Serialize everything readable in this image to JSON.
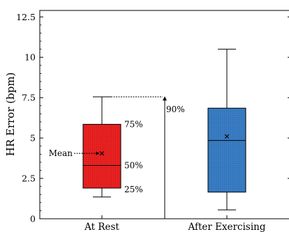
{
  "chart_data": {
    "type": "box",
    "ylabel": "HR Error (bpm)",
    "ylim": [
      0,
      12.9
    ],
    "yticks": [
      0,
      2.5,
      5,
      7.5,
      10,
      12.5
    ],
    "ytick_labels": [
      "0",
      "2.5",
      "5",
      "7.5",
      "10",
      "12.5"
    ],
    "categories": [
      "At Rest",
      "After Exercising"
    ],
    "boxes": [
      {
        "category": "At Rest",
        "whisker_low": 1.35,
        "q1": 1.9,
        "median": 3.3,
        "q3": 5.85,
        "whisker_high": 7.55,
        "mean": 4.05,
        "color": "#ee2222"
      },
      {
        "category": "After Exercising",
        "whisker_low": 0.55,
        "q1": 1.65,
        "median": 4.85,
        "q3": 6.85,
        "whisker_high": 10.5,
        "mean": 5.1,
        "color": "#3a7fc6"
      }
    ],
    "annotations": {
      "mean_label": "Mean",
      "q3_label": "75%",
      "median_label": "50%",
      "q1_label": "25%",
      "range_label": "90%"
    },
    "grid": false,
    "legend": "none"
  }
}
